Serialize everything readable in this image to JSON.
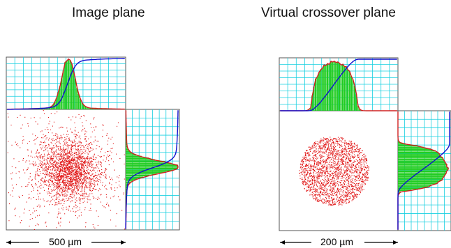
{
  "panels": [
    {
      "title": "Image plane",
      "scale_bar_label": "500 µm",
      "spot_shape": "gaussian",
      "colors": {
        "dots": "#e01010",
        "histogram": "#22cc22",
        "fit": "#d02020",
        "cumulative": "#1010d0",
        "grid": "#19d0e0"
      }
    },
    {
      "title": "Virtual crossover plane",
      "scale_bar_label": "200 µm",
      "spot_shape": "uniform-disc",
      "colors": {
        "dots": "#e01010",
        "histogram": "#22cc22",
        "fit": "#d02020",
        "cumulative": "#1010d0",
        "grid": "#19d0e0"
      }
    }
  ]
}
